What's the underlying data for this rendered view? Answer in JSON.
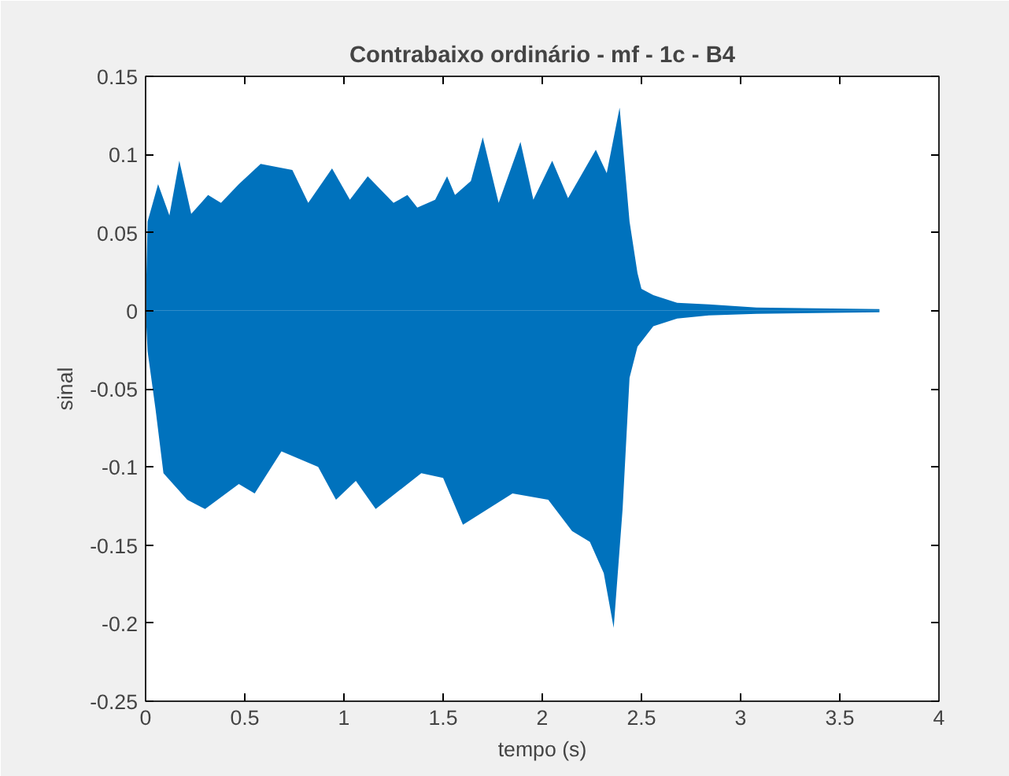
{
  "chart_data": {
    "type": "area",
    "title": "Contrabaixo ordinário - mf - 1c - B4",
    "xlabel": "tempo (s)",
    "ylabel": "sinal",
    "series": [
      {
        "color": "#0072bd",
        "x": [
          0,
          0.01,
          0.063,
          0.12,
          0.17,
          0.23,
          0.315,
          0.38,
          0.47,
          0.58,
          0.74,
          0.82,
          0.94,
          1.03,
          1.12,
          1.25,
          1.32,
          1.37,
          1.46,
          1.52,
          1.56,
          1.64,
          1.7,
          1.78,
          1.89,
          1.955,
          2.05,
          2.13,
          2.27,
          2.325,
          2.39,
          2.44,
          2.48,
          2.5,
          2.56,
          2.68,
          2.84,
          3.08,
          3.7
        ],
        "values": [
          0,
          0.057,
          0.081,
          0.061,
          0.096,
          0.062,
          0.074,
          0.069,
          0.081,
          0.094,
          0.09,
          0.069,
          0.091,
          0.071,
          0.086,
          0.069,
          0.074,
          0.066,
          0.071,
          0.086,
          0.074,
          0.083,
          0.111,
          0.069,
          0.108,
          0.071,
          0.096,
          0.072,
          0.103,
          0.088,
          0.13,
          0.057,
          0.024,
          0.014,
          0.01,
          0.005,
          0.004,
          0.002,
          0.001
        ]
      },
      {
        "color": "#0072bd",
        "x": [
          0,
          0.01,
          0.05,
          0.09,
          0.21,
          0.3,
          0.47,
          0.55,
          0.685,
          0.87,
          0.96,
          1.06,
          1.16,
          1.39,
          1.5,
          1.6,
          1.85,
          2.03,
          2.15,
          2.24,
          2.31,
          2.36,
          2.405,
          2.44,
          2.48,
          2.56,
          2.68,
          2.84,
          3.08,
          3.7
        ],
        "values": [
          0,
          -0.026,
          -0.063,
          -0.104,
          -0.121,
          -0.127,
          -0.111,
          -0.117,
          -0.09,
          -0.1,
          -0.121,
          -0.109,
          -0.127,
          -0.104,
          -0.107,
          -0.137,
          -0.117,
          -0.121,
          -0.141,
          -0.148,
          -0.168,
          -0.203,
          -0.127,
          -0.043,
          -0.023,
          -0.01,
          -0.005,
          -0.003,
          -0.002,
          -0.001
        ]
      }
    ],
    "xlim": [
      0,
      4
    ],
    "xticks": [
      0,
      0.5,
      1,
      1.5,
      2,
      2.5,
      3,
      3.5,
      4
    ],
    "ylim": [
      -0.25,
      0.15
    ],
    "yticks": [
      -0.25,
      -0.2,
      -0.15,
      -0.1,
      -0.05,
      0,
      0.05,
      0.1,
      0.15
    ],
    "grid": false
  }
}
